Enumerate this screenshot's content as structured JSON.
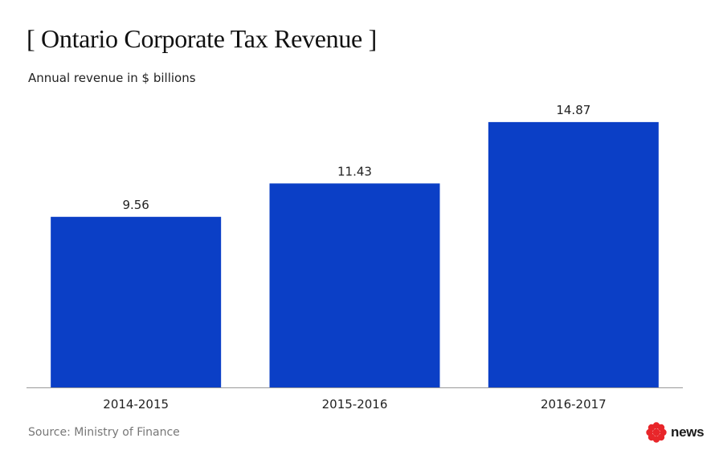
{
  "chart_data": {
    "type": "bar",
    "title": "[ Ontario Corporate Tax Revenue ]",
    "subtitle": "Annual revenue in $ billions",
    "categories": [
      "2014-2015",
      "2015-2016",
      "2016-2017"
    ],
    "values": [
      9.56,
      11.43,
      14.87
    ],
    "value_labels": [
      "9.56",
      "11.43",
      "14.87"
    ],
    "xlabel": "",
    "ylabel": "",
    "ylim": [
      0,
      16.5
    ],
    "grid": false,
    "legend": "none",
    "bar_color": "#0b3fc6"
  },
  "footer": {
    "source": "Source: Ministry of Finance",
    "logo_text": "news",
    "logo_color": "#e8262a"
  }
}
